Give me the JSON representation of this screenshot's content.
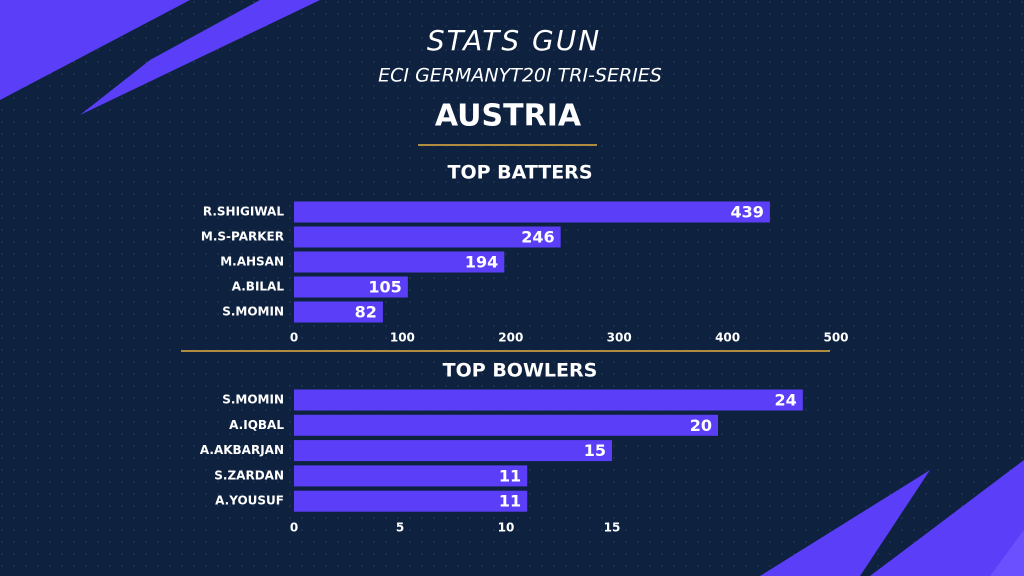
{
  "header": {
    "title": "STATS GUN",
    "subtitle": "ECI GERMANYT20I TRI-SERIES",
    "team": "AUSTRIA"
  },
  "chart_data": [
    {
      "type": "hbar",
      "title": "TOP BATTERS",
      "categories": [
        "R.SHIGIWAL",
        "M.S-PARKER",
        "M.AHSAN",
        "A.BILAL",
        "S.MOMIN"
      ],
      "values": [
        439,
        246,
        194,
        105,
        82
      ],
      "color": "#5b3ff8",
      "xlim": [
        0,
        500
      ],
      "xticks": [
        0,
        100,
        200,
        300,
        400,
        500
      ]
    },
    {
      "type": "hbar",
      "title": "TOP BOWLERS",
      "categories": [
        "S.MOMIN",
        "A.IQBAL",
        "A.AKBARJAN",
        "S.ZARDAN",
        "A.YOUSUF"
      ],
      "values": [
        24,
        20,
        15,
        11,
        11
      ],
      "color": "#5b3ff8",
      "xlim": [
        0,
        25
      ],
      "xticks": [
        0,
        5,
        10,
        15
      ]
    }
  ]
}
